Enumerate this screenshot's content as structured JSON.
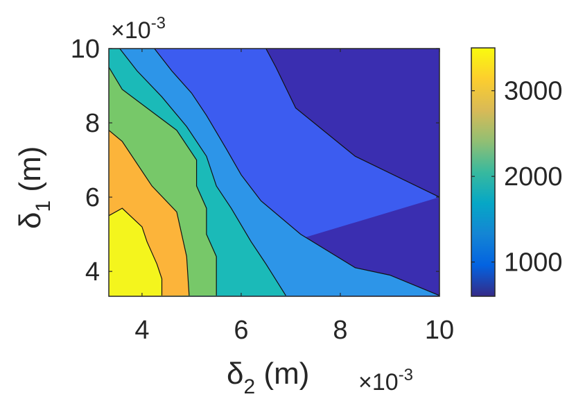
{
  "chart_data": {
    "type": "contour",
    "title": "",
    "xlabel": "δ2 (m)",
    "ylabel": "δ1 (m)",
    "x_exponent_label": "×10^-3",
    "y_exponent_label": "×10^-3",
    "xlim": [
      3.33,
      10
    ],
    "ylim": [
      3.33,
      10
    ],
    "xticks": [
      4,
      6,
      8,
      10
    ],
    "yticks": [
      4,
      6,
      8,
      10
    ],
    "colorbar": {
      "limits": [
        600,
        3500
      ],
      "ticks": [
        1000,
        2000,
        3000
      ],
      "tick_labels": [
        "1000",
        "2000",
        "3000"
      ],
      "colormap": "parula"
    },
    "levels": [
      1000,
      1500,
      2000,
      2500,
      3000
    ],
    "band_colors": [
      "#3a2eb0",
      "#3c5cf0",
      "#2d95e8",
      "#1bbab8",
      "#77c869",
      "#fcb43a",
      "#f4f51d"
    ],
    "contours": [
      {
        "level": 1000,
        "points": [
          [
            6.5,
            10
          ],
          [
            6.7,
            9.5
          ],
          [
            7.1,
            8.4
          ],
          [
            8.3,
            7.1
          ],
          [
            10,
            6.0
          ]
        ]
      },
      {
        "level": 1500,
        "points": [
          [
            4.25,
            10
          ],
          [
            4.6,
            9.4
          ],
          [
            5.0,
            8.8
          ],
          [
            5.3,
            8.2
          ],
          [
            5.7,
            7.3
          ],
          [
            6.0,
            6.6
          ],
          [
            6.4,
            5.9
          ],
          [
            7.2,
            5.0
          ],
          [
            8.3,
            4.1
          ],
          [
            9.0,
            3.9
          ],
          [
            10,
            3.35
          ]
        ]
      },
      {
        "level": 2000,
        "points": [
          [
            3.55,
            10
          ],
          [
            3.9,
            9.4
          ],
          [
            4.4,
            8.7
          ],
          [
            4.9,
            7.9
          ],
          [
            5.3,
            7.1
          ],
          [
            5.5,
            6.3
          ],
          [
            5.8,
            5.7
          ],
          [
            6.2,
            4.8
          ],
          [
            6.5,
            4.2
          ],
          [
            6.9,
            3.35
          ]
        ]
      },
      {
        "level": 2500,
        "points": [
          [
            3.33,
            9.5
          ],
          [
            3.6,
            8.9
          ],
          [
            4.2,
            8.3
          ],
          [
            4.7,
            7.8
          ],
          [
            5.1,
            7.0
          ],
          [
            5.1,
            6.3
          ],
          [
            5.3,
            5.7
          ],
          [
            5.3,
            5.0
          ],
          [
            5.5,
            4.4
          ],
          [
            5.5,
            3.35
          ]
        ]
      },
      {
        "level": 3000,
        "points": [
          [
            3.33,
            7.8
          ],
          [
            3.6,
            7.5
          ],
          [
            4.2,
            6.3
          ],
          [
            4.7,
            5.6
          ],
          [
            4.8,
            5.0
          ],
          [
            4.9,
            4.4
          ],
          [
            4.95,
            3.35
          ]
        ]
      },
      {
        "level": 3500,
        "points": [
          [
            3.33,
            5.5
          ],
          [
            3.6,
            5.7
          ],
          [
            4.0,
            5.2
          ],
          [
            4.1,
            4.8
          ],
          [
            4.3,
            4.2
          ],
          [
            4.4,
            3.8
          ],
          [
            4.4,
            3.35
          ]
        ]
      }
    ]
  }
}
